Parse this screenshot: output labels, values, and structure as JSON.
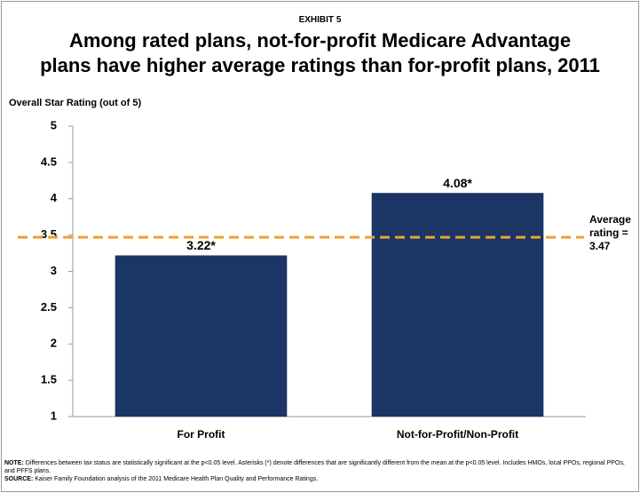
{
  "chart_data": {
    "type": "bar",
    "exhibit": "EXHIBIT 5",
    "title_lines": [
      "Among rated plans, not-for-profit Medicare Advantage",
      "plans have higher average ratings than for-profit plans, 2011"
    ],
    "y_axis_label": "Overall Star Rating (out of 5)",
    "categories": [
      "For Profit",
      "Not-for-Profit/Non-Profit"
    ],
    "values": [
      3.22,
      4.08
    ],
    "value_labels": [
      "3.22*",
      "4.08*"
    ],
    "color": "#1b3565",
    "ylim": [
      1,
      5
    ],
    "yticks": [
      1,
      1.5,
      2,
      2.5,
      3,
      3.5,
      4,
      4.5,
      5
    ],
    "grid": false,
    "reference_line": {
      "value": 3.47,
      "label": "Average rating = 3.47",
      "color": "#f0a030"
    },
    "notes": [
      {
        "label": "NOTE:",
        "text": "Differences between tax status are statistically significant at the p<0.05 level. Asterisks (*) denote differences that are significantly different from the mean at the p<0.05 level. Includes HMOs, local PPOs, regional PPOs, and PFFS plans."
      },
      {
        "label": "SOURCE:",
        "text": "Kaiser Family Foundation analysis of the 2011 Medicare Health Plan Quality and Performance Ratings."
      }
    ]
  }
}
